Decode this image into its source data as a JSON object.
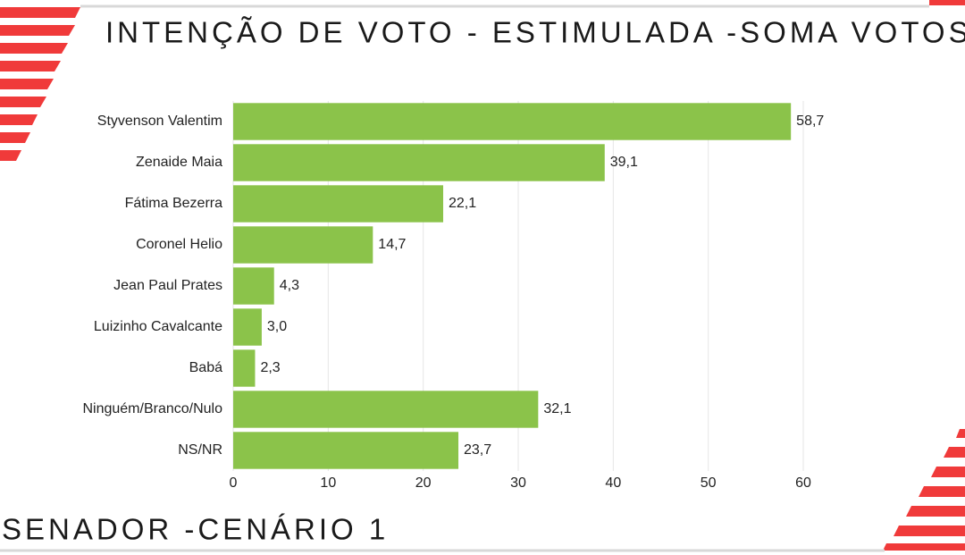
{
  "chart_data": {
    "type": "bar",
    "orientation": "horizontal",
    "title": "INTENÇÃO DE VOTO - ESTIMULADA -SOMA VOTOS",
    "subtitle": "SENADOR -CENÁRIO 1",
    "categories": [
      "Styvenson Valentim",
      "Zenaide Maia",
      "Fátima Bezerra",
      "Coronel Helio",
      "Jean Paul Prates",
      "Luizinho Cavalcante",
      "Babá",
      "Ninguém/Branco/Nulo",
      "NS/NR"
    ],
    "values": [
      58.7,
      39.1,
      22.1,
      14.7,
      4.3,
      3.0,
      2.3,
      32.1,
      23.7
    ],
    "value_labels": [
      "58,7",
      "39,1",
      "22,1",
      "14,7",
      "4,3",
      "3,0",
      "2,3",
      "32,1",
      "23,7"
    ],
    "color": "#8bc34a",
    "xlim": [
      0,
      60
    ],
    "xticks": [
      0,
      10,
      20,
      30,
      40,
      50,
      60
    ],
    "grid": true
  }
}
